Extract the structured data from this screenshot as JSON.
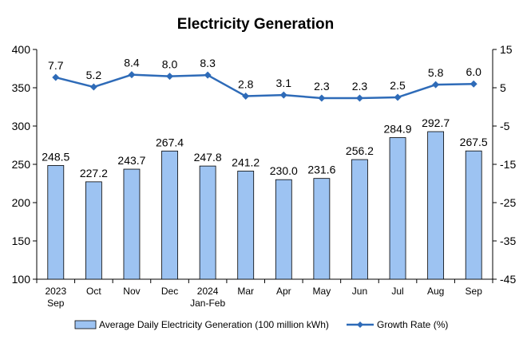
{
  "chart_data": {
    "type": "bar+line",
    "title": "Electricity Generation",
    "categories": [
      [
        "2023",
        "Sep"
      ],
      [
        "Oct"
      ],
      [
        "Nov"
      ],
      [
        "Dec"
      ],
      [
        "2024",
        "Jan-Feb"
      ],
      [
        "Mar"
      ],
      [
        "Apr"
      ],
      [
        "May"
      ],
      [
        "Jun"
      ],
      [
        "Jul"
      ],
      [
        "Aug"
      ],
      [
        "Sep"
      ]
    ],
    "series": [
      {
        "name": "Average Daily Electricity Generation (100 million kWh)",
        "type": "bar",
        "axis": "left",
        "values": [
          248.5,
          227.2,
          243.7,
          267.4,
          247.8,
          241.2,
          230.0,
          231.6,
          256.2,
          284.9,
          292.7,
          267.5
        ],
        "labels": [
          "248.5",
          "227.2",
          "243.7",
          "267.4",
          "247.8",
          "241.2",
          "230.0",
          "231.6",
          "256.2",
          "284.9",
          "292.7",
          "267.5"
        ],
        "color": "#9DC3F2"
      },
      {
        "name": "Growth Rate (%)",
        "type": "line",
        "axis": "right",
        "values": [
          7.7,
          5.2,
          8.4,
          8.0,
          8.3,
          2.8,
          3.1,
          2.3,
          2.3,
          2.5,
          5.8,
          6.0
        ],
        "labels": [
          "7.7",
          "5.2",
          "8.4",
          "8.0",
          "8.3",
          "2.8",
          "3.1",
          "2.3",
          "2.3",
          "2.5",
          "5.8",
          "6.0"
        ],
        "color": "#2E6BB8"
      }
    ],
    "y_left": {
      "lim": [
        100,
        400
      ],
      "ticks": [
        "100",
        "150",
        "200",
        "250",
        "300",
        "350",
        "400"
      ]
    },
    "y_right": {
      "lim": [
        -45,
        15
      ],
      "ticks": [
        "-45",
        "-35",
        "-25",
        "-15",
        "-5",
        "5",
        "15"
      ]
    },
    "grid": false,
    "legend": "bottom"
  }
}
